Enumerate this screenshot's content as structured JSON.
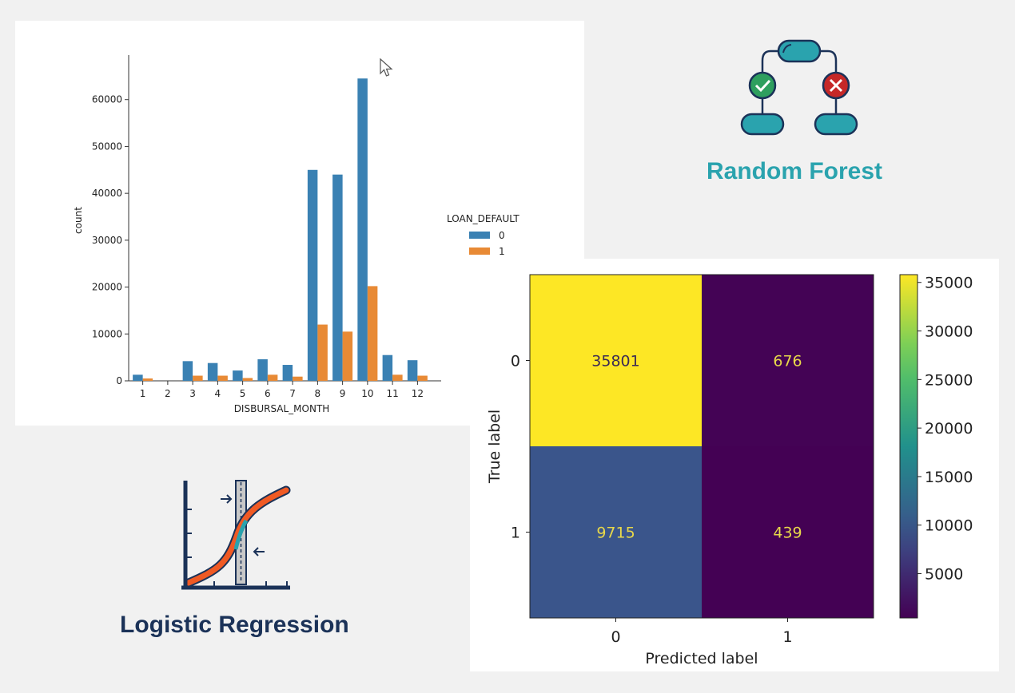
{
  "colors": {
    "background": "#f1f1f1",
    "series0": "#3a81b3",
    "series1": "#e88a35",
    "rf_teal": "#2aa3ae",
    "lr_navy": "#1b3258",
    "check_green": "#2e9f5e",
    "cross_red": "#c62828",
    "lr_orange": "#f05a24"
  },
  "random_forest": {
    "caption": "Random Forest",
    "icon": "decision-tree-icon"
  },
  "logistic_regression": {
    "caption": "Logistic Regression",
    "icon": "sigmoid-curve-icon"
  },
  "chart_data": [
    {
      "type": "bar",
      "title": "",
      "xlabel": "DISBURSAL_MONTH",
      "ylabel": "count",
      "categories": [
        "1",
        "2",
        "3",
        "4",
        "5",
        "6",
        "7",
        "8",
        "9",
        "10",
        "11",
        "12"
      ],
      "series": [
        {
          "name": "0",
          "values": [
            1300,
            0,
            4200,
            3800,
            2200,
            4600,
            3400,
            45000,
            44000,
            64500,
            5500,
            4400
          ]
        },
        {
          "name": "1",
          "values": [
            500,
            0,
            1100,
            1100,
            600,
            1300,
            900,
            12000,
            10500,
            20200,
            1300,
            1100
          ]
        }
      ],
      "ylim": [
        0,
        70000
      ],
      "yticks": [
        0,
        10000,
        20000,
        30000,
        40000,
        50000,
        60000
      ],
      "legend": {
        "title": "LOAN_DEFAULT",
        "placement": "center-right"
      },
      "grid": false
    },
    {
      "type": "heatmap",
      "title": "",
      "xlabel": "Predicted label",
      "ylabel": "True label",
      "x_categories": [
        "0",
        "1"
      ],
      "y_categories": [
        "0",
        "1"
      ],
      "values": [
        [
          35801,
          676
        ],
        [
          9715,
          439
        ]
      ],
      "colorbar": {
        "min": 439,
        "max": 35801,
        "ticks": [
          5000,
          10000,
          15000,
          20000,
          25000,
          30000,
          35000
        ],
        "colormap": "viridis"
      }
    }
  ]
}
